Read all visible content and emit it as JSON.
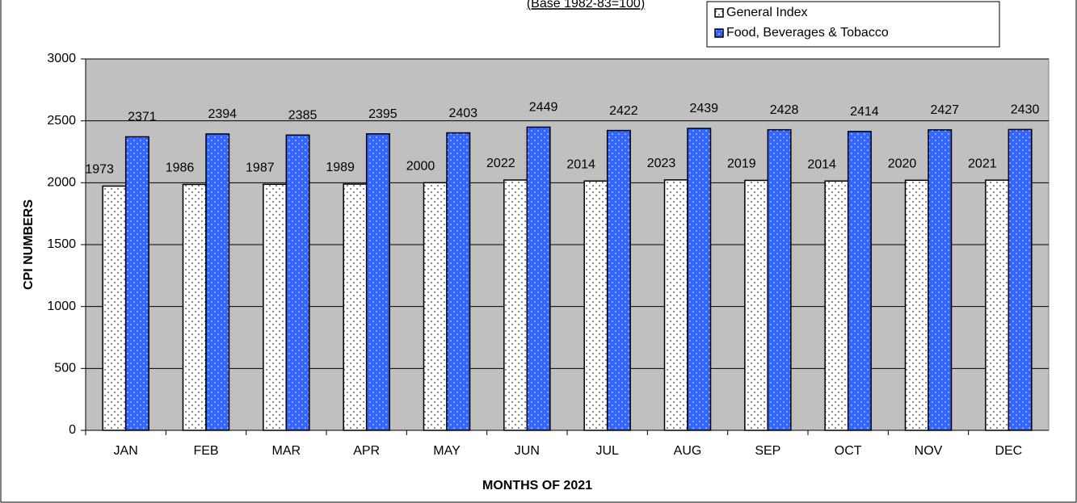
{
  "chart_data": {
    "type": "bar",
    "subtitle": "(Base 1982-83=100)",
    "y_label": "CPI NUMBERS",
    "x_label": "MONTHS OF 2021",
    "categories": [
      "JAN",
      "FEB",
      "MAR",
      "APR",
      "MAY",
      "JUN",
      "JUL",
      "AUG",
      "SEP",
      "OCT",
      "NOV",
      "DEC"
    ],
    "series": [
      {
        "name": "General Index",
        "color": "#ffffff",
        "values": [
          1973,
          1986,
          1987,
          1989,
          2000,
          2022,
          2014,
          2023,
          2019,
          2014,
          2020,
          2021
        ]
      },
      {
        "name": "Food, Beverages & Tobacco",
        "color": "#3366ff",
        "values": [
          2371,
          2394,
          2385,
          2395,
          2403,
          2449,
          2422,
          2439,
          2428,
          2414,
          2427,
          2430
        ]
      }
    ],
    "ylim": [
      0,
      3000
    ],
    "yticks": [
      0,
      500,
      1000,
      1500,
      2000,
      2500,
      3000
    ],
    "grid": true,
    "legend": "top-right"
  }
}
